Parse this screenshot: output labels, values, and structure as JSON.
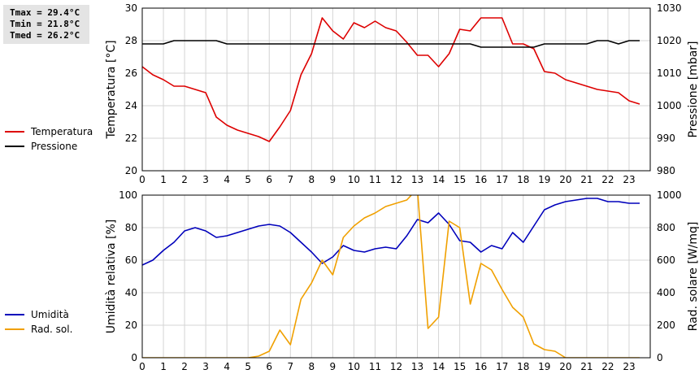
{
  "stats": {
    "tmax": "Tmax = 29.4°C",
    "tmin": "Tmin = 21.8°C",
    "tmed": "Tmed = 26.2°C"
  },
  "chart_data": [
    {
      "type": "line",
      "x_ticks": [
        "0",
        "1",
        "2",
        "3",
        "4",
        "5",
        "6",
        "7",
        "8",
        "9",
        "10",
        "11",
        "12",
        "13",
        "14",
        "15",
        "16",
        "17",
        "18",
        "19",
        "20",
        "21",
        "22",
        "23"
      ],
      "xlim": [
        0,
        24
      ],
      "grid": true,
      "legend_placement": "left",
      "left_axis": {
        "label": "Temperatura [°C]",
        "ylim": [
          20,
          30
        ],
        "ticks": [
          "20",
          "22",
          "24",
          "26",
          "28",
          "30"
        ]
      },
      "right_axis": {
        "label": "Pressione [mbar]",
        "ylim": [
          980,
          1030
        ],
        "ticks": [
          "980",
          "990",
          "1000",
          "1010",
          "1020",
          "1030"
        ]
      },
      "series": [
        {
          "name": "Temperatura",
          "axis": "left",
          "color": "#dd0000",
          "x": [
            0,
            0.5,
            1,
            1.5,
            2,
            2.5,
            3,
            3.5,
            4,
            4.5,
            5,
            5.5,
            6,
            6.5,
            7,
            7.5,
            8,
            8.5,
            9,
            9.5,
            10,
            10.5,
            11,
            11.5,
            12,
            12.5,
            13,
            13.5,
            14,
            14.5,
            15,
            15.5,
            16,
            16.5,
            17,
            17.5,
            18,
            18.5,
            19,
            19.5,
            20,
            20.5,
            21,
            21.5,
            22,
            22.5,
            23,
            23.5
          ],
          "y": [
            26.4,
            25.9,
            25.6,
            25.2,
            25.2,
            25.0,
            24.8,
            23.3,
            22.8,
            22.5,
            22.3,
            22.1,
            21.8,
            22.7,
            23.7,
            25.9,
            27.2,
            29.4,
            28.6,
            28.1,
            29.1,
            28.8,
            29.2,
            28.8,
            28.6,
            27.9,
            27.1,
            27.1,
            26.4,
            27.2,
            28.7,
            28.6,
            29.4,
            29.4,
            29.4,
            27.8,
            27.8,
            27.5,
            26.1,
            26.0,
            25.6,
            25.4,
            25.2,
            25.0,
            24.9,
            24.8,
            24.3,
            24.1
          ]
        },
        {
          "name": "Pressione",
          "axis": "right",
          "color": "#000000",
          "x": [
            0,
            0.5,
            1,
            1.5,
            2,
            2.5,
            3,
            3.5,
            4,
            4.5,
            5,
            5.5,
            6,
            6.5,
            7,
            7.5,
            8,
            8.5,
            9,
            9.5,
            10,
            10.5,
            11,
            11.5,
            12,
            12.5,
            13,
            13.5,
            14,
            14.5,
            15,
            15.5,
            16,
            16.5,
            17,
            17.5,
            18,
            18.5,
            19,
            19.5,
            20,
            20.5,
            21,
            21.5,
            22,
            22.5,
            23,
            23.5
          ],
          "y": [
            1019,
            1019,
            1019,
            1020,
            1020,
            1020,
            1020,
            1020,
            1019,
            1019,
            1019,
            1019,
            1019,
            1019,
            1019,
            1019,
            1019,
            1019,
            1019,
            1019,
            1019,
            1019,
            1019,
            1019,
            1019,
            1019,
            1019,
            1019,
            1019,
            1019,
            1019,
            1019,
            1018,
            1018,
            1018,
            1018,
            1018,
            1018,
            1019,
            1019,
            1019,
            1019,
            1019,
            1020,
            1020,
            1019,
            1020,
            1020
          ]
        }
      ]
    },
    {
      "type": "line",
      "x_ticks": [
        "0",
        "1",
        "2",
        "3",
        "4",
        "5",
        "6",
        "7",
        "8",
        "9",
        "10",
        "11",
        "12",
        "13",
        "14",
        "15",
        "16",
        "17",
        "18",
        "19",
        "20",
        "21",
        "22",
        "23"
      ],
      "xlim": [
        0,
        24
      ],
      "grid": true,
      "legend_placement": "left",
      "left_axis": {
        "label": "Umidità relativa [%]",
        "ylim": [
          0,
          100
        ],
        "ticks": [
          "0",
          "20",
          "40",
          "60",
          "80",
          "100"
        ]
      },
      "right_axis": {
        "label": "Rad. solare [W/mq]",
        "ylim": [
          0,
          1000
        ],
        "ticks": [
          "0",
          "200",
          "400",
          "600",
          "800",
          "1000"
        ]
      },
      "series": [
        {
          "name": "Umidità",
          "axis": "left",
          "color": "#0000bb",
          "x": [
            0,
            0.5,
            1,
            1.5,
            2,
            2.5,
            3,
            3.5,
            4,
            4.5,
            5,
            5.5,
            6,
            6.5,
            7,
            7.5,
            8,
            8.5,
            9,
            9.5,
            10,
            10.5,
            11,
            11.5,
            12,
            12.5,
            13,
            13.5,
            14,
            14.5,
            15,
            15.5,
            16,
            16.5,
            17,
            17.5,
            18,
            18.5,
            19,
            19.5,
            20,
            20.5,
            21,
            21.5,
            22,
            22.5,
            23,
            23.5
          ],
          "y": [
            57,
            60,
            66,
            71,
            78,
            80,
            78,
            74,
            75,
            77,
            79,
            81,
            82,
            81,
            77,
            71,
            65,
            58,
            62,
            69,
            66,
            65,
            67,
            68,
            67,
            75,
            85,
            83,
            89,
            82,
            72,
            71,
            65,
            69,
            67,
            77,
            71,
            81,
            91,
            94,
            96,
            97,
            98,
            98,
            96,
            96,
            95,
            95
          ]
        },
        {
          "name": "Rad. sol.",
          "axis": "right",
          "color": "#f0a000",
          "x": [
            0,
            0.5,
            1,
            1.5,
            2,
            2.5,
            3,
            3.5,
            4,
            4.5,
            5,
            5.5,
            6,
            6.5,
            7,
            7.5,
            8,
            8.5,
            9,
            9.5,
            10,
            10.5,
            11,
            11.5,
            12,
            12.5,
            13,
            13.5,
            14,
            14.5,
            15,
            15.5,
            16,
            16.5,
            17,
            17.5,
            18,
            18.5,
            19,
            19.5,
            20,
            20.5,
            21,
            21.5,
            22,
            22.5,
            23,
            23.5
          ],
          "y": [
            0,
            0,
            0,
            0,
            0,
            0,
            0,
            0,
            0,
            0,
            0,
            10,
            40,
            170,
            80,
            360,
            460,
            600,
            510,
            740,
            810,
            860,
            890,
            930,
            950,
            970,
            1040,
            180,
            250,
            840,
            800,
            330,
            580,
            540,
            420,
            310,
            250,
            85,
            50,
            40,
            0,
            0,
            0,
            0,
            0,
            0,
            0,
            0
          ]
        }
      ]
    }
  ]
}
